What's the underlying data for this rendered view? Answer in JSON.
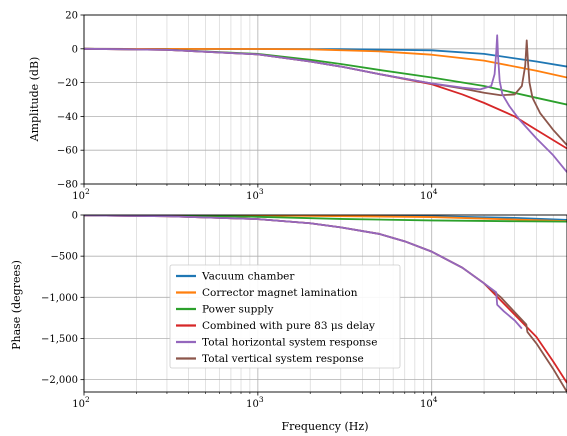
{
  "chart_data": [
    {
      "type": "line",
      "ylabel": "Amplitude (dB)",
      "xlabel": "",
      "xscale": "log",
      "xlim": [
        100,
        60000
      ],
      "ylim": [
        -80,
        20
      ],
      "grid": true,
      "x_ticks": [
        {
          "value": 100,
          "base": "10",
          "exp": "2"
        },
        {
          "value": 1000,
          "base": "10",
          "exp": "3"
        },
        {
          "value": 10000,
          "base": "10",
          "exp": "4"
        }
      ],
      "y_ticks": [
        {
          "value": 20,
          "label": "20"
        },
        {
          "value": 0,
          "label": "0"
        },
        {
          "value": -20,
          "label": "−20"
        },
        {
          "value": -40,
          "label": "−40"
        },
        {
          "value": -60,
          "label": "−60"
        },
        {
          "value": -80,
          "label": "−80"
        }
      ],
      "series": [
        {
          "name": "Vacuum chamber",
          "color": "#1f77b4",
          "points": [
            [
              100,
              0
            ],
            [
              1000,
              -0.1
            ],
            [
              3000,
              -0.2
            ],
            [
              10000,
              -0.9
            ],
            [
              20000,
              -3
            ],
            [
              40000,
              -7.5
            ],
            [
              60000,
              -10.5
            ]
          ]
        },
        {
          "name": "Corrector magnet lamination",
          "color": "#ff7f0e",
          "points": [
            [
              100,
              0
            ],
            [
              1000,
              -0.1
            ],
            [
              2000,
              -0.3
            ],
            [
              5000,
              -1.5
            ],
            [
              10000,
              -3.5
            ],
            [
              20000,
              -7
            ],
            [
              40000,
              -13
            ],
            [
              60000,
              -17
            ]
          ]
        },
        {
          "name": "Power supply",
          "color": "#2ca02c",
          "points": [
            [
              100,
              0
            ],
            [
              300,
              -0.5
            ],
            [
              1000,
              -3
            ],
            [
              2000,
              -6.5
            ],
            [
              3000,
              -9
            ],
            [
              5000,
              -12.5
            ],
            [
              10000,
              -17
            ],
            [
              20000,
              -22
            ],
            [
              40000,
              -29
            ],
            [
              60000,
              -33
            ]
          ]
        },
        {
          "name": "Combined with pure 83 μs delay",
          "color": "#d62728",
          "points": [
            [
              100,
              0
            ],
            [
              300,
              -0.6
            ],
            [
              1000,
              -3.3
            ],
            [
              2000,
              -7.5
            ],
            [
              3000,
              -10.5
            ],
            [
              5000,
              -15
            ],
            [
              10000,
              -21
            ],
            [
              15000,
              -27
            ],
            [
              20000,
              -32
            ],
            [
              30000,
              -40
            ],
            [
              40000,
              -48
            ],
            [
              60000,
              -59
            ]
          ]
        },
        {
          "name": "Total horizontal system response",
          "color": "#9467bd",
          "points": [
            [
              100,
              0
            ],
            [
              300,
              -0.6
            ],
            [
              1000,
              -3.3
            ],
            [
              2000,
              -7.5
            ],
            [
              3000,
              -10.5
            ],
            [
              5000,
              -15
            ],
            [
              10000,
              -20.5
            ],
            [
              15000,
              -23
            ],
            [
              19000,
              -24
            ],
            [
              22000,
              -22
            ],
            [
              23000,
              -15
            ],
            [
              23500,
              -2
            ],
            [
              23800,
              8
            ],
            [
              24100,
              -5
            ],
            [
              24600,
              -19
            ],
            [
              25500,
              -27
            ],
            [
              28000,
              -34
            ],
            [
              32000,
              -42
            ],
            [
              40000,
              -53
            ],
            [
              50000,
              -63
            ],
            [
              60000,
              -73
            ]
          ]
        },
        {
          "name": "Total vertical system response",
          "color": "#8c564b",
          "points": [
            [
              100,
              0
            ],
            [
              300,
              -0.6
            ],
            [
              1000,
              -3.3
            ],
            [
              2000,
              -7.5
            ],
            [
              3000,
              -10.5
            ],
            [
              5000,
              -15
            ],
            [
              10000,
              -20.5
            ],
            [
              15000,
              -23.5
            ],
            [
              20000,
              -26
            ],
            [
              25000,
              -27.5
            ],
            [
              30000,
              -27
            ],
            [
              33000,
              -22
            ],
            [
              34500,
              -10
            ],
            [
              35200,
              5
            ],
            [
              35800,
              -8
            ],
            [
              36500,
              -20
            ],
            [
              38000,
              -29
            ],
            [
              42000,
              -38
            ],
            [
              50000,
              -48
            ],
            [
              60000,
              -57
            ]
          ]
        }
      ]
    },
    {
      "type": "line",
      "ylabel": "Phase (degrees)",
      "xlabel": "Frequency (Hz)",
      "xscale": "log",
      "xlim": [
        100,
        60000
      ],
      "ylim": [
        -2150,
        0
      ],
      "grid": true,
      "x_ticks": [
        {
          "value": 100,
          "base": "10",
          "exp": "2"
        },
        {
          "value": 1000,
          "base": "10",
          "exp": "3"
        },
        {
          "value": 10000,
          "base": "10",
          "exp": "4"
        }
      ],
      "y_ticks": [
        {
          "value": 0,
          "label": "0"
        },
        {
          "value": -500,
          "label": "−500"
        },
        {
          "value": -1000,
          "label": "−1,000"
        },
        {
          "value": -1500,
          "label": "−1,500"
        },
        {
          "value": -2000,
          "label": "−2,000"
        }
      ],
      "legend": {
        "position": "lower-left"
      },
      "series": [
        {
          "name": "Vacuum chamber",
          "color": "#1f77b4",
          "points": [
            [
              100,
              0
            ],
            [
              1000,
              -2
            ],
            [
              10000,
              -15
            ],
            [
              30000,
              -35
            ],
            [
              60000,
              -60
            ]
          ]
        },
        {
          "name": "Corrector magnet lamination",
          "color": "#ff7f0e",
          "points": [
            [
              100,
              0
            ],
            [
              1000,
              -4
            ],
            [
              10000,
              -25
            ],
            [
              30000,
              -55
            ],
            [
              60000,
              -75
            ]
          ]
        },
        {
          "name": "Power supply",
          "color": "#2ca02c",
          "points": [
            [
              100,
              -1
            ],
            [
              300,
              -6
            ],
            [
              1000,
              -22
            ],
            [
              3000,
              -48
            ],
            [
              10000,
              -66
            ],
            [
              30000,
              -76
            ],
            [
              60000,
              -80
            ]
          ]
        },
        {
          "name": "Combined with pure 83 μs delay",
          "color": "#d62728",
          "points": [
            [
              100,
              -4
            ],
            [
              300,
              -15
            ],
            [
              1000,
              -50
            ],
            [
              2000,
              -100
            ],
            [
              3000,
              -150
            ],
            [
              5000,
              -230
            ],
            [
              7000,
              -320
            ],
            [
              10000,
              -445
            ],
            [
              15000,
              -640
            ],
            [
              20000,
              -830
            ],
            [
              30000,
              -1210
            ],
            [
              40000,
              -1480
            ],
            [
              50000,
              -1780
            ],
            [
              60000,
              -2040
            ]
          ]
        },
        {
          "name": "Total horizontal system response",
          "color": "#9467bd",
          "points": [
            [
              100,
              -4
            ],
            [
              300,
              -15
            ],
            [
              1000,
              -50
            ],
            [
              2000,
              -100
            ],
            [
              3000,
              -150
            ],
            [
              5000,
              -230
            ],
            [
              7000,
              -320
            ],
            [
              10000,
              -445
            ],
            [
              15000,
              -640
            ],
            [
              20000,
              -830
            ],
            [
              23500,
              -940
            ],
            [
              23800,
              -1090
            ],
            [
              26000,
              -1170
            ],
            [
              30000,
              -1280
            ],
            [
              33000,
              -1380
            ]
          ]
        },
        {
          "name": "Total vertical system response",
          "color": "#8c564b",
          "points": [
            [
              100,
              -4
            ],
            [
              300,
              -15
            ],
            [
              1000,
              -50
            ],
            [
              2000,
              -100
            ],
            [
              3000,
              -150
            ],
            [
              5000,
              -230
            ],
            [
              7000,
              -320
            ],
            [
              10000,
              -445
            ],
            [
              15000,
              -640
            ],
            [
              20000,
              -830
            ],
            [
              25000,
              -1000
            ],
            [
              30000,
              -1180
            ],
            [
              35000,
              -1330
            ],
            [
              35500,
              -1420
            ],
            [
              40000,
              -1560
            ],
            [
              50000,
              -1870
            ],
            [
              60000,
              -2150
            ]
          ]
        }
      ]
    }
  ]
}
